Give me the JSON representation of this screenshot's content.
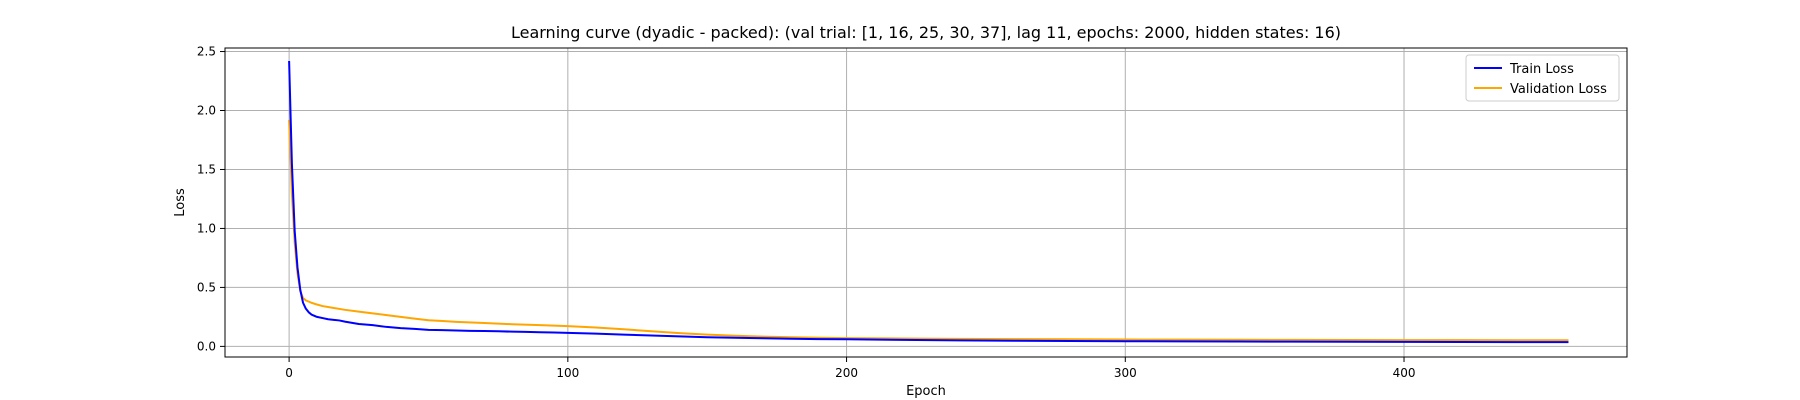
{
  "chart_data": {
    "type": "line",
    "title": "Learning curve (dyadic - packed): (val trial: [1, 16, 25, 30, 37], lag 11, epochs: 2000, hidden states: 16)",
    "xlabel": "Epoch",
    "ylabel": "Loss",
    "xlim": [
      -23,
      480
    ],
    "ylim": [
      -0.09,
      2.53
    ],
    "xticks": [
      0,
      100,
      200,
      300,
      400
    ],
    "yticks": [
      0.0,
      0.5,
      1.0,
      1.5,
      2.0,
      2.5
    ],
    "grid": true,
    "legend": "top-right",
    "series": [
      {
        "name": "Train Loss",
        "color": "#0000ff",
        "x": [
          0,
          1,
          2,
          3,
          4,
          5,
          6,
          7,
          8,
          10,
          12,
          14,
          16,
          18,
          20,
          25,
          30,
          35,
          40,
          45,
          50,
          55,
          60,
          65,
          70,
          75,
          80,
          85,
          90,
          95,
          100,
          110,
          120,
          130,
          140,
          150,
          160,
          170,
          180,
          190,
          200,
          220,
          240,
          260,
          280,
          300,
          320,
          340,
          360,
          380,
          400,
          420,
          440,
          459
        ],
        "y": [
          2.42,
          1.55,
          0.98,
          0.67,
          0.48,
          0.37,
          0.32,
          0.29,
          0.27,
          0.25,
          0.24,
          0.23,
          0.225,
          0.22,
          0.21,
          0.19,
          0.18,
          0.165,
          0.155,
          0.148,
          0.14,
          0.138,
          0.135,
          0.132,
          0.13,
          0.128,
          0.125,
          0.123,
          0.12,
          0.118,
          0.115,
          0.108,
          0.1,
          0.092,
          0.085,
          0.078,
          0.073,
          0.069,
          0.065,
          0.062,
          0.06,
          0.055,
          0.051,
          0.048,
          0.046,
          0.044,
          0.042,
          0.041,
          0.04,
          0.039,
          0.038,
          0.037,
          0.036,
          0.036
        ]
      },
      {
        "name": "Validation Loss",
        "color": "#ffa500",
        "x": [
          0,
          1,
          2,
          3,
          4,
          5,
          6,
          8,
          10,
          12,
          15,
          20,
          25,
          30,
          35,
          40,
          45,
          50,
          55,
          60,
          70,
          80,
          90,
          100,
          110,
          120,
          130,
          140,
          150,
          160,
          170,
          180,
          190,
          200,
          220,
          240,
          260,
          280,
          300,
          320,
          340,
          360,
          380,
          400,
          420,
          440,
          459
        ],
        "y": [
          1.92,
          1.3,
          0.88,
          0.62,
          0.47,
          0.41,
          0.39,
          0.37,
          0.355,
          0.342,
          0.33,
          0.31,
          0.295,
          0.28,
          0.265,
          0.25,
          0.235,
          0.222,
          0.215,
          0.208,
          0.198,
          0.188,
          0.18,
          0.172,
          0.16,
          0.145,
          0.128,
          0.112,
          0.1,
          0.09,
          0.083,
          0.077,
          0.073,
          0.07,
          0.067,
          0.064,
          0.062,
          0.06,
          0.058,
          0.057,
          0.056,
          0.055,
          0.054,
          0.053,
          0.053,
          0.052,
          0.052
        ]
      }
    ]
  }
}
